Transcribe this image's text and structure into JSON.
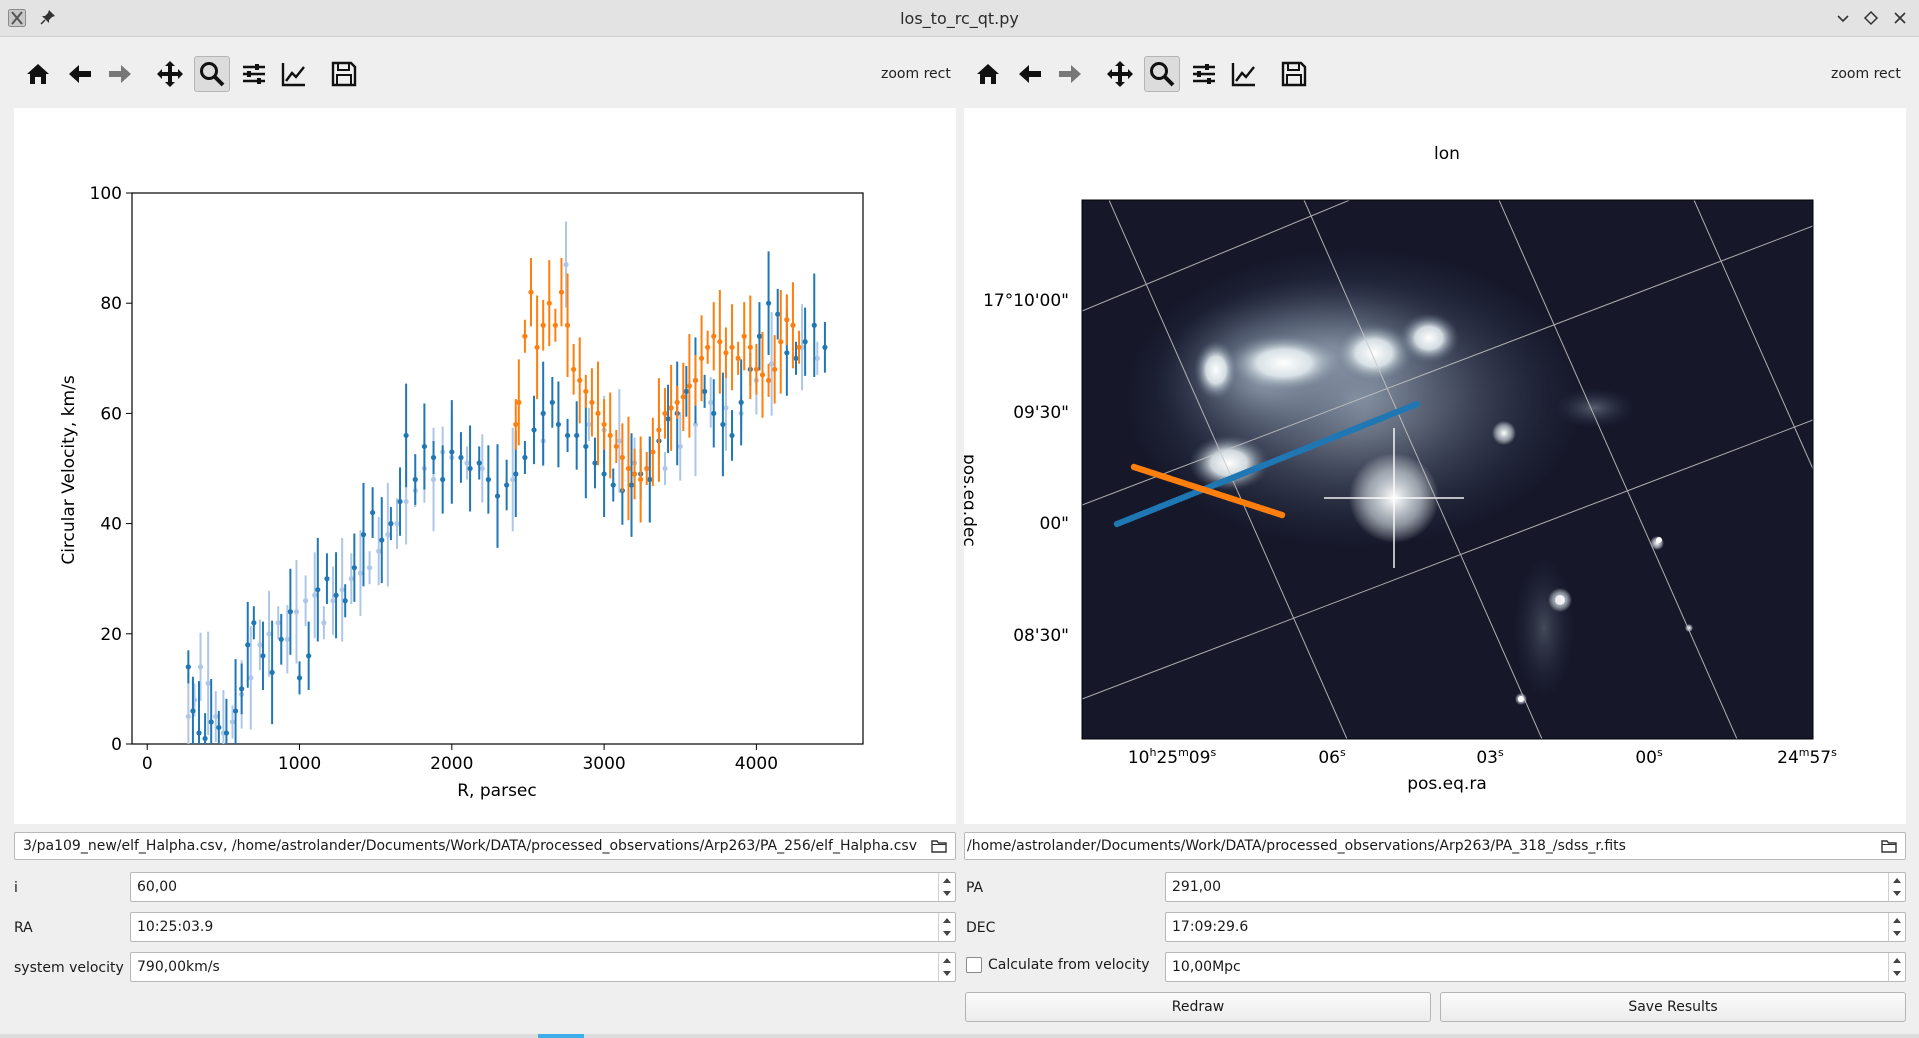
{
  "window": {
    "title": "los_to_rc_qt.py",
    "icons": [
      "app-icon",
      "pin-icon",
      "minimize-icon",
      "restore-icon",
      "close-icon"
    ]
  },
  "toolbar_left": {
    "buttons": [
      "home-icon",
      "back-icon",
      "forward-icon",
      "pan-icon",
      "zoom-icon",
      "configure-subplots-icon",
      "edit-axis-icon",
      "save-icon"
    ],
    "active": "zoom-icon",
    "mode_label": "zoom rect"
  },
  "toolbar_right": {
    "buttons": [
      "home-icon",
      "back-icon",
      "forward-icon",
      "pan-icon",
      "zoom-icon",
      "configure-subplots-icon",
      "edit-axis-icon",
      "save-icon"
    ],
    "active": "zoom-icon",
    "mode_label": "zoom rect"
  },
  "left_plot": {
    "xlabel": "R, parsec",
    "ylabel": "Circular Velocity, km/s",
    "xticks": [
      "0",
      "1000",
      "2000",
      "3000",
      "4000"
    ],
    "yticks": [
      "0",
      "20",
      "40",
      "60",
      "80",
      "100"
    ]
  },
  "right_plot": {
    "title": "lon",
    "xlabel": "pos.eq.ra",
    "ylabel": "pos.eq.dec",
    "xticks": [
      {
        "main": "10",
        "h": "h",
        "m_val": "25",
        "m": "m",
        "s_val": "09",
        "s": "s"
      },
      {
        "main": "06",
        "s": "s"
      },
      {
        "main": "03",
        "s": "s"
      },
      {
        "main": "00",
        "s": "s"
      },
      {
        "main": "24",
        "m": "m",
        "s_val": "57",
        "s": "s"
      }
    ],
    "yticks": [
      "17°10'00\"",
      "09'30\"",
      "00\"",
      "08'30\""
    ]
  },
  "chart_data": [
    {
      "type": "scatter",
      "xlabel": "R, parsec",
      "ylabel": "Circular Velocity, km/s",
      "xlim": [
        -100,
        4700
      ],
      "ylim": [
        0,
        100
      ],
      "grid": false,
      "colors": {
        "blue": "#1f77b4",
        "light_blue": "#aec7e8",
        "orange": "#ff7f0e"
      },
      "series": [
        {
          "x": [
            270,
            300,
            340,
            380,
            420,
            470,
            520,
            580,
            620,
            660,
            700,
            760,
            820,
            880,
            940,
            1000,
            1060,
            1120,
            1180,
            1240,
            1300,
            1360,
            1420,
            1480,
            1540,
            1600,
            1660,
            1700,
            1760,
            1820,
            1880,
            1940,
            2000,
            2060,
            2120,
            2180,
            2240,
            2300,
            2360,
            2420,
            2480,
            2540,
            2600,
            2660,
            2700,
            2760,
            2820,
            2880,
            2940,
            3000,
            3060,
            3120,
            3180,
            3240,
            3300,
            3360,
            3420,
            3480,
            3540,
            3600,
            3660,
            3720,
            3780,
            3840,
            3900,
            3960,
            4020,
            4080,
            4140,
            4200,
            4260,
            4320,
            4380,
            4450
          ],
          "y": [
            14,
            6,
            2,
            1,
            4,
            3,
            2,
            6,
            10,
            18,
            22,
            16,
            13,
            19,
            24,
            12,
            16,
            28,
            30,
            27,
            26,
            32,
            38,
            42,
            37,
            40,
            44,
            56,
            48,
            54,
            52,
            48,
            53,
            52,
            50,
            51,
            48,
            45,
            47,
            49,
            52,
            57,
            60,
            62,
            58,
            56,
            56,
            54,
            51,
            49,
            47,
            46,
            47,
            49,
            48,
            55,
            59,
            60,
            64,
            66,
            64,
            60,
            58,
            56,
            62,
            68,
            74,
            80,
            78,
            71,
            70,
            73,
            76,
            72
          ]
        },
        {
          "x": [
            270,
            310,
            350,
            400,
            450,
            500,
            560,
            620,
            680,
            740,
            800,
            860,
            920,
            980,
            1040,
            1100,
            1160,
            1220,
            1280,
            1340,
            1400,
            1460,
            1520,
            1580,
            1640,
            1700,
            1760,
            1820,
            1880,
            1940,
            2000,
            2100,
            2200,
            2400,
            2600,
            2750,
            2900,
            3000,
            3100,
            3200,
            3300,
            3400,
            3500,
            3600,
            3700,
            3800,
            3900,
            4000,
            4100,
            4200,
            4300,
            4400
          ],
          "y": [
            5,
            8,
            14,
            11,
            5,
            2,
            4,
            9,
            12,
            18,
            20,
            22,
            19,
            24,
            26,
            27,
            22,
            26,
            28,
            30,
            31,
            32,
            35,
            38,
            40,
            44,
            46,
            50,
            48,
            53,
            52,
            51,
            50,
            48,
            55,
            87,
            58,
            57,
            55,
            51,
            48,
            50,
            54,
            58,
            62,
            61,
            60,
            66,
            69,
            77,
            72,
            70
          ]
        },
        {
          "x": [
            2420,
            2440,
            2480,
            2520,
            2560,
            2600,
            2640,
            2680,
            2720,
            2760,
            2800,
            2840,
            2880,
            2920,
            2960,
            3000,
            3040,
            3080,
            3120,
            3160,
            3200,
            3240,
            3280,
            3320,
            3360,
            3400,
            3440,
            3480,
            3520,
            3560,
            3600,
            3640,
            3680,
            3720,
            3760,
            3800,
            3840,
            3880,
            3920,
            3960,
            4000,
            4040,
            4080,
            4120,
            4160,
            4200,
            4240,
            4280
          ],
          "y": [
            58,
            62,
            74,
            82,
            72,
            76,
            80,
            76,
            82,
            76,
            68,
            66,
            64,
            62,
            60,
            58,
            56,
            54,
            52,
            50,
            49,
            48,
            50,
            53,
            57,
            60,
            61,
            62,
            63,
            65,
            66,
            70,
            72,
            74,
            73,
            71,
            72,
            70,
            74,
            72,
            68,
            67,
            66,
            68,
            73,
            77,
            76,
            72
          ]
        }
      ]
    },
    {
      "type": "image",
      "title": "lon",
      "xlabel": "pos.eq.ra",
      "ylabel": "pos.eq.dec"
    }
  ],
  "inputs": {
    "left_path": "3/pa109_new/elf_Halpha.csv, /home/astrolander/Documents/Work/DATA/processed_observations/Arp263/PA_256/elf_Halpha.csv",
    "right_path": "/home/astrolander/Documents/Work/DATA/processed_observations/Arp263/PA_318_/sdss_r.fits",
    "i_label": "i",
    "i_value": "60,00",
    "ra_label": "RA",
    "ra_value": "10:25:03.9",
    "sysvel_label": "system velocity",
    "sysvel_value": "790,00km/s",
    "pa_label": "PA",
    "pa_value": "291,00",
    "dec_label": "DEC",
    "dec_value": "17:09:29.6",
    "calc_label": "Calculate from velocity",
    "dist_value": "10,00Mpc"
  },
  "buttons": {
    "redraw": "Redraw",
    "save_results": "Save Results"
  }
}
